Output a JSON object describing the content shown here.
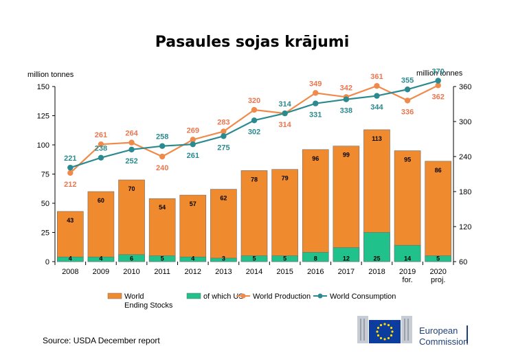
{
  "chart_data": {
    "type": "bar",
    "title": "Pasaules sojas krājumi",
    "left_axis_unit": "million tonnes",
    "right_axis_unit": "million tonnes",
    "categories": [
      [
        "2008"
      ],
      [
        "2009"
      ],
      [
        "2010"
      ],
      [
        "2011"
      ],
      [
        "2012"
      ],
      [
        "2013"
      ],
      [
        "2014"
      ],
      [
        "2015"
      ],
      [
        "2016"
      ],
      [
        "2017"
      ],
      [
        "2018"
      ],
      [
        "2019",
        "for."
      ],
      [
        "2020",
        "proj."
      ]
    ],
    "left_axis": {
      "ylim": [
        0,
        150
      ],
      "ticks": [
        "0",
        "25",
        "50",
        "75",
        "100",
        "125",
        "150"
      ]
    },
    "right_axis": {
      "ylim": [
        60,
        360
      ],
      "ticks": [
        "60",
        "120",
        "180",
        "240",
        "300",
        "360"
      ]
    },
    "grid": false,
    "legend_position": "bottom",
    "series": [
      {
        "name": "World Ending Stocks",
        "legend_lines": [
          "World",
          "Ending Stocks"
        ],
        "type": "bar",
        "axis": "left",
        "color": "#ef8a2e",
        "values": [
          43,
          60,
          70,
          54,
          57,
          62,
          78,
          79,
          96,
          99,
          113,
          95,
          86
        ]
      },
      {
        "name": "of which US",
        "legend_lines": [
          "of which US"
        ],
        "type": "bar",
        "axis": "left",
        "color": "#20c18a",
        "values": [
          4,
          4,
          6,
          5,
          4,
          3,
          5,
          5,
          8,
          12,
          25,
          14,
          5
        ]
      },
      {
        "name": "World Production",
        "legend_lines": [
          "World Production"
        ],
        "type": "line",
        "axis": "right",
        "color": "#f08a4b",
        "label_color": "#e9764f",
        "values": [
          212,
          261,
          264,
          240,
          269,
          283,
          320,
          314,
          349,
          342,
          361,
          336,
          362
        ],
        "label_side": [
          "below",
          "above",
          "above",
          "below",
          "above",
          "above",
          "above",
          "below",
          "above",
          "above",
          "above",
          "below",
          "below"
        ]
      },
      {
        "name": "World Consumption",
        "legend_lines": [
          "World Consumption"
        ],
        "type": "line",
        "axis": "right",
        "color": "#2a8a8f",
        "label_color": "#2a8a8f",
        "values": [
          221,
          238,
          252,
          258,
          261,
          275,
          302,
          314,
          331,
          338,
          344,
          355,
          370
        ],
        "label_side": [
          "above",
          "above",
          "below",
          "above",
          "below",
          "below",
          "below",
          "above",
          "below",
          "below",
          "below",
          "above",
          "above"
        ]
      }
    ]
  },
  "footer": {
    "source": "Source: USDA December report",
    "logo_lines": [
      "European",
      "Commission"
    ]
  }
}
